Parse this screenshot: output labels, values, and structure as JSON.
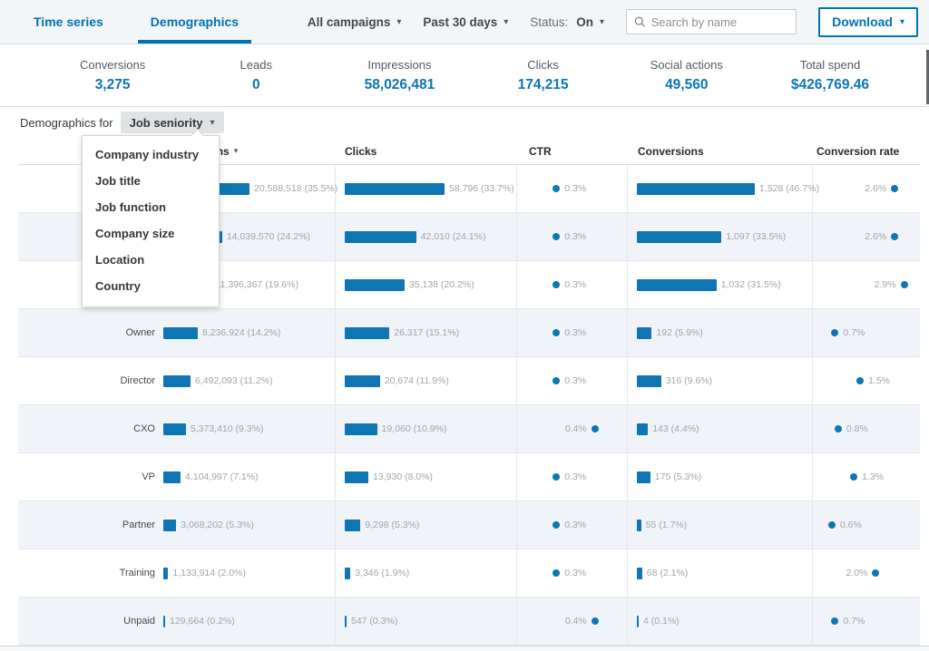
{
  "colors": {
    "accent": "#0073b1",
    "bar": "#0e76b4",
    "row_tint": "#f0f4f8"
  },
  "tabs": [
    {
      "label": "Time series",
      "active": false
    },
    {
      "label": "Demographics",
      "active": true
    }
  ],
  "filters": {
    "campaigns": "All campaigns",
    "date_range": "Past 30 days",
    "status_label": "Status:",
    "status_value": "On"
  },
  "search": {
    "placeholder": "Search by name"
  },
  "download": {
    "label": "Download"
  },
  "stats": [
    {
      "label": "Conversions",
      "value": "3,275"
    },
    {
      "label": "Leads",
      "value": "0"
    },
    {
      "label": "Impressions",
      "value": "58,026,481"
    },
    {
      "label": "Clicks",
      "value": "174,215"
    },
    {
      "label": "Social actions",
      "value": "49,560"
    },
    {
      "label": "Total spend",
      "value": "$426,769.46"
    }
  ],
  "demographics": {
    "label": "Demographics for",
    "selected": "Job seniority"
  },
  "dropdown": {
    "items": [
      "Company industry",
      "Job title",
      "Job function",
      "Company size",
      "Location",
      "Country"
    ]
  },
  "table": {
    "columns": [
      "Impressions",
      "Clicks",
      "CTR",
      "Conversions",
      "Conversion rate"
    ],
    "sorted_by": "Impressions",
    "rows": [
      {
        "label": "",
        "impressions": "20,588,518",
        "impressions_pct": 35.5,
        "clicks": "58,796",
        "clicks_pct": 33.7,
        "ctr_pct": 0.3,
        "conversions": "1,528",
        "conversions_pct": 46.7,
        "conversion_rate_pct": 2.6
      },
      {
        "label": "",
        "impressions": "14,039,570",
        "impressions_pct": 24.2,
        "clicks": "42,010",
        "clicks_pct": 24.1,
        "ctr_pct": 0.3,
        "conversions": "1,097",
        "conversions_pct": 33.5,
        "conversion_rate_pct": 2.6
      },
      {
        "label": "",
        "impressions": "11,396,367",
        "impressions_pct": 19.6,
        "clicks": "35,138",
        "clicks_pct": 20.2,
        "ctr_pct": 0.3,
        "conversions": "1,032",
        "conversions_pct": 31.5,
        "conversion_rate_pct": 2.9
      },
      {
        "label": "Owner",
        "impressions": "8,236,924",
        "impressions_pct": 14.2,
        "clicks": "26,317",
        "clicks_pct": 15.1,
        "ctr_pct": 0.3,
        "conversions": "192",
        "conversions_pct": 5.9,
        "conversion_rate_pct": 0.7
      },
      {
        "label": "Director",
        "impressions": "6,492,093",
        "impressions_pct": 11.2,
        "clicks": "20,674",
        "clicks_pct": 11.9,
        "ctr_pct": 0.3,
        "conversions": "316",
        "conversions_pct": 9.6,
        "conversion_rate_pct": 1.5
      },
      {
        "label": "CXO",
        "impressions": "5,373,410",
        "impressions_pct": 9.3,
        "clicks": "19,060",
        "clicks_pct": 10.9,
        "ctr_pct": 0.4,
        "conversions": "143",
        "conversions_pct": 4.4,
        "conversion_rate_pct": 0.8
      },
      {
        "label": "VP",
        "impressions": "4,104,997",
        "impressions_pct": 7.1,
        "clicks": "13,930",
        "clicks_pct": 8.0,
        "ctr_pct": 0.3,
        "conversions": "175",
        "conversions_pct": 5.3,
        "conversion_rate_pct": 1.3
      },
      {
        "label": "Partner",
        "impressions": "3,068,202",
        "impressions_pct": 5.3,
        "clicks": "9,298",
        "clicks_pct": 5.3,
        "ctr_pct": 0.3,
        "conversions": "55",
        "conversions_pct": 1.7,
        "conversion_rate_pct": 0.6
      },
      {
        "label": "Training",
        "impressions": "1,133,914",
        "impressions_pct": 2.0,
        "clicks": "3,346",
        "clicks_pct": 1.9,
        "ctr_pct": 0.3,
        "conversions": "68",
        "conversions_pct": 2.1,
        "conversion_rate_pct": 2.0
      },
      {
        "label": "Unpaid",
        "impressions": "129,664",
        "impressions_pct": 0.2,
        "clicks": "547",
        "clicks_pct": 0.3,
        "ctr_pct": 0.4,
        "conversions": "4",
        "conversions_pct": 0.1,
        "conversion_rate_pct": 0.7
      }
    ]
  }
}
